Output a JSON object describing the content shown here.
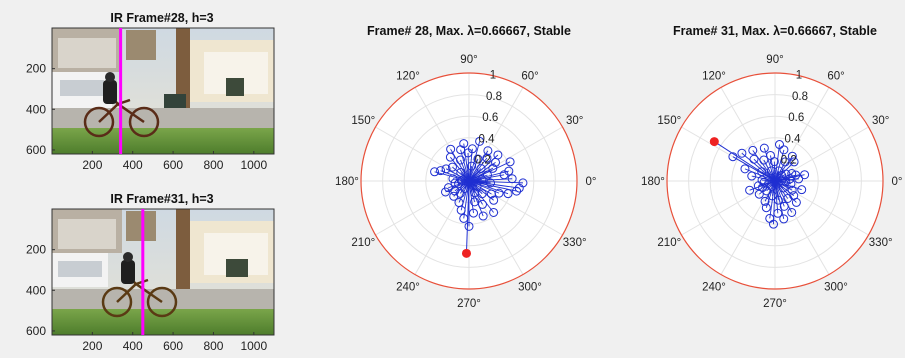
{
  "chart_data": [
    {
      "type": "image",
      "title": "IR Frame#28, h=3",
      "xticks": [
        "200",
        "400",
        "600",
        "800",
        "1000"
      ],
      "yticks": [
        "200",
        "400",
        "600"
      ],
      "x_range": [
        0,
        1100
      ],
      "y_range": [
        0,
        620
      ],
      "marker_line": {
        "x": 340,
        "color": "#ff00ff"
      }
    },
    {
      "type": "image",
      "title": "IR Frame#31, h=3",
      "xticks": [
        "200",
        "400",
        "600",
        "800",
        "1000"
      ],
      "yticks": [
        "200",
        "400",
        "600"
      ],
      "x_range": [
        0,
        1100
      ],
      "y_range": [
        0,
        620
      ],
      "marker_line": {
        "x": 450,
        "color": "#ff00ff"
      }
    },
    {
      "type": "polar",
      "title": "Frame# 28, Max. λ=0.66667, Stable",
      "r_ticks": [
        "0.2",
        "0.4",
        "0.6",
        "0.8",
        "1"
      ],
      "angle_ticks": [
        "0°",
        "30°",
        "60°",
        "90°",
        "120°",
        "150°",
        "180°",
        "210°",
        "240°",
        "270°",
        "300°",
        "330°"
      ],
      "unit_circle_color": "#e8503a",
      "series_color": "#1f2fd1",
      "highlight": {
        "angle": 268,
        "r": 0.67,
        "color": "#ee2222"
      },
      "points": [
        [
          0,
          0.05
        ],
        [
          6,
          0.12
        ],
        [
          18,
          0.18
        ],
        [
          28,
          0.25
        ],
        [
          35,
          0.3
        ],
        [
          42,
          0.36
        ],
        [
          52,
          0.27
        ],
        [
          58,
          0.33
        ],
        [
          68,
          0.22
        ],
        [
          75,
          0.38
        ],
        [
          84,
          0.3
        ],
        [
          92,
          0.26
        ],
        [
          98,
          0.35
        ],
        [
          105,
          0.3
        ],
        [
          112,
          0.21
        ],
        [
          120,
          0.34
        ],
        [
          128,
          0.28
        ],
        [
          140,
          0.2
        ],
        [
          152,
          0.24
        ],
        [
          165,
          0.33
        ],
        [
          172,
          0.15
        ],
        [
          180,
          0.07
        ],
        [
          188,
          0.13
        ],
        [
          198,
          0.2
        ],
        [
          205,
          0.24
        ],
        [
          215,
          0.16
        ],
        [
          225,
          0.2
        ],
        [
          235,
          0.14
        ],
        [
          245,
          0.22
        ],
        [
          255,
          0.28
        ],
        [
          262,
          0.35
        ],
        [
          270,
          0.42
        ],
        [
          278,
          0.3
        ],
        [
          285,
          0.2
        ],
        [
          292,
          0.35
        ],
        [
          300,
          0.25
        ],
        [
          308,
          0.37
        ],
        [
          316,
          0.17
        ],
        [
          322,
          0.29
        ],
        [
          330,
          0.24
        ],
        [
          338,
          0.3
        ],
        [
          342,
          0.38
        ],
        [
          348,
          0.45
        ],
        [
          352,
          0.47
        ],
        [
          358,
          0.5
        ],
        [
          3,
          0.4
        ],
        [
          10,
          0.33
        ],
        [
          14,
          0.38
        ],
        [
          25,
          0.42
        ],
        [
          46,
          0.16
        ],
        [
          80,
          0.14
        ],
        [
          134,
          0.11
        ],
        [
          160,
          0.28
        ],
        [
          195,
          0.1
        ],
        [
          240,
          0.08
        ],
        [
          296,
          0.12
        ],
        [
          326,
          0.09
        ],
        [
          355,
          0.2
        ]
      ]
    },
    {
      "type": "polar",
      "title": "Frame# 31, Max. λ=0.66667, Stable",
      "r_ticks": [
        "0.2",
        "0.4",
        "0.6",
        "0.8",
        "1"
      ],
      "angle_ticks": [
        "0°",
        "30°",
        "60°",
        "90°",
        "120°",
        "150°",
        "180°",
        "210°",
        "240°",
        "270°",
        "300°",
        "330°"
      ],
      "unit_circle_color": "#e8503a",
      "series_color": "#1f2fd1",
      "highlight": {
        "angle": 147,
        "r": 0.67,
        "color": "#ee2222"
      },
      "points": [
        [
          0,
          0.06
        ],
        [
          8,
          0.14
        ],
        [
          16,
          0.2
        ],
        [
          24,
          0.17
        ],
        [
          33,
          0.12
        ],
        [
          45,
          0.25
        ],
        [
          55,
          0.28
        ],
        [
          62,
          0.2
        ],
        [
          74,
          0.3
        ],
        [
          83,
          0.34
        ],
        [
          92,
          0.18
        ],
        [
          100,
          0.24
        ],
        [
          108,
          0.32
        ],
        [
          118,
          0.22
        ],
        [
          126,
          0.35
        ],
        [
          134,
          0.28
        ],
        [
          140,
          0.4
        ],
        [
          150,
          0.45
        ],
        [
          158,
          0.3
        ],
        [
          168,
          0.22
        ],
        [
          176,
          0.12
        ],
        [
          186,
          0.1
        ],
        [
          196,
          0.16
        ],
        [
          208,
          0.13
        ],
        [
          220,
          0.19
        ],
        [
          230,
          0.12
        ],
        [
          244,
          0.21
        ],
        [
          252,
          0.26
        ],
        [
          262,
          0.35
        ],
        [
          268,
          0.4
        ],
        [
          275,
          0.3
        ],
        [
          283,
          0.36
        ],
        [
          290,
          0.25
        ],
        [
          298,
          0.33
        ],
        [
          306,
          0.2
        ],
        [
          315,
          0.28
        ],
        [
          322,
          0.22
        ],
        [
          332,
          0.18
        ],
        [
          342,
          0.26
        ],
        [
          350,
          0.15
        ],
        [
          356,
          0.1
        ],
        [
          5,
          0.22
        ],
        [
          12,
          0.28
        ],
        [
          40,
          0.08
        ],
        [
          70,
          0.1
        ],
        [
          110,
          0.1
        ],
        [
          145,
          0.15
        ],
        [
          200,
          0.25
        ],
        [
          238,
          0.06
        ],
        [
          260,
          0.14
        ],
        [
          280,
          0.18
        ],
        [
          320,
          0.1
        ]
      ]
    }
  ]
}
